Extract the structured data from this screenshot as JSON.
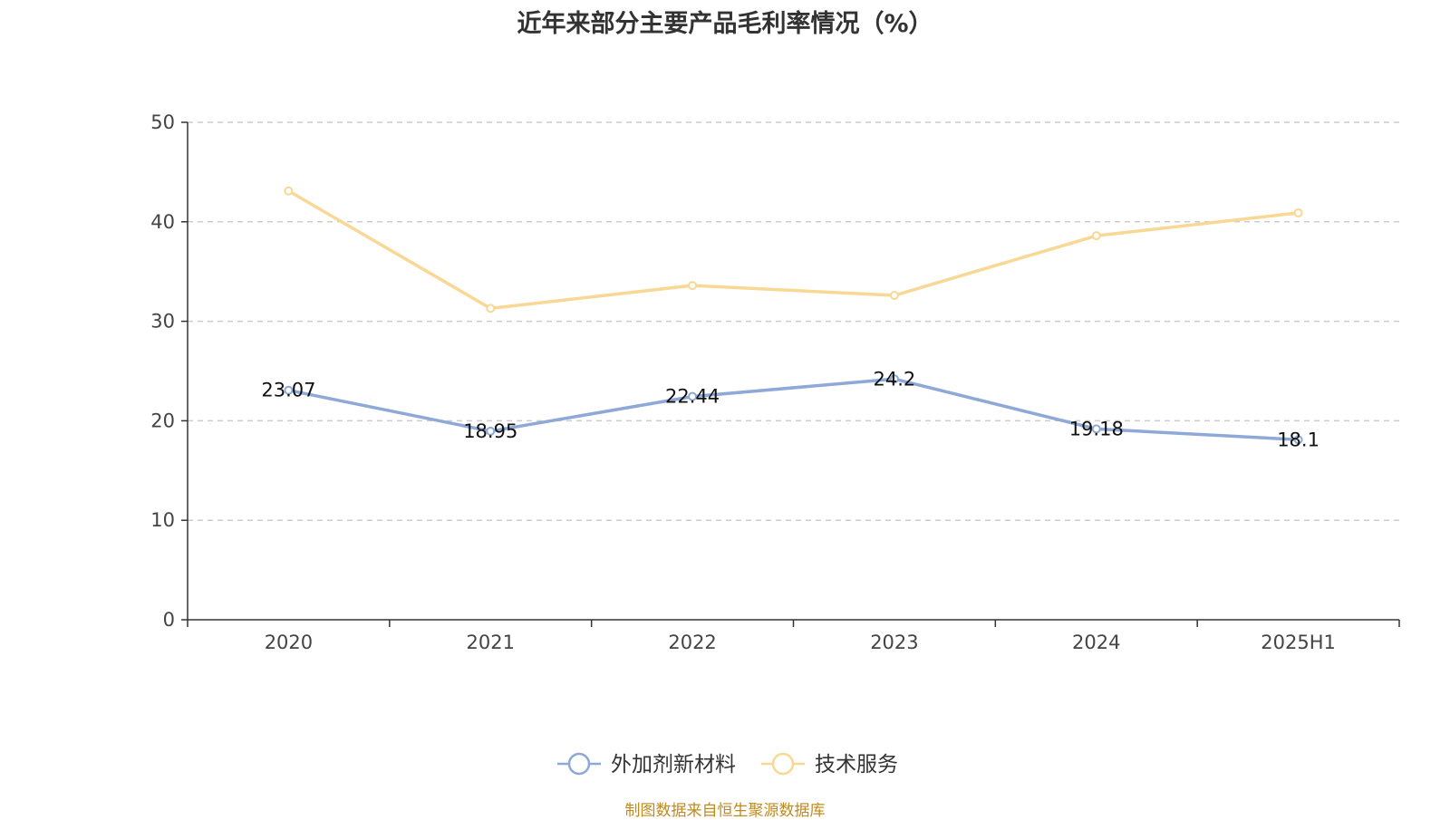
{
  "chart_data": {
    "type": "line",
    "title": "近年来部分主要产品毛利率情况（%）",
    "categories": [
      "2020",
      "2021",
      "2022",
      "2023",
      "2024",
      "2025H1"
    ],
    "ylim": [
      0,
      50
    ],
    "yticks": [
      0,
      10,
      20,
      30,
      40,
      50
    ],
    "grid": true,
    "legend_position": "bottom-center",
    "series": [
      {
        "name": "外加剂新材料",
        "color": "#8ea8d8",
        "values": [
          23.07,
          18.95,
          22.44,
          24.2,
          19.18,
          18.1
        ],
        "labels": [
          "23.07",
          "18.95",
          "22.44",
          "24.2",
          "19.18",
          "18.1"
        ]
      },
      {
        "name": "技术服务",
        "color": "#f8d894",
        "values": [
          43.1,
          31.3,
          33.6,
          32.6,
          38.6,
          40.9
        ]
      }
    ]
  },
  "footer": {
    "source": "制图数据来自恒生聚源数据库"
  }
}
